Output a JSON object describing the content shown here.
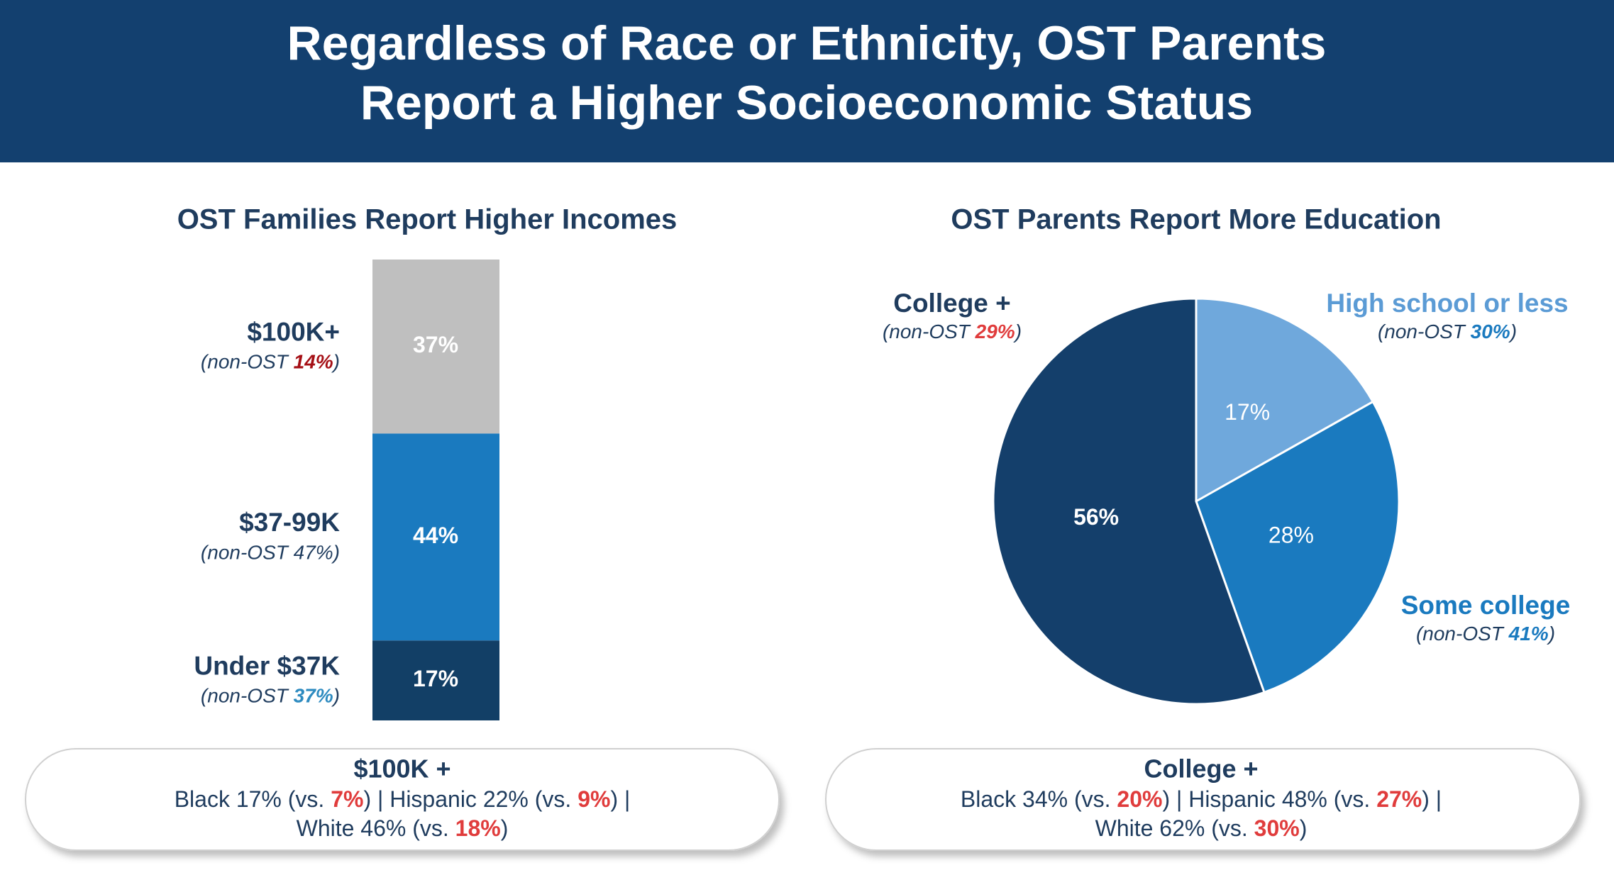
{
  "title_lines": [
    "Regardless of Race or Ethnicity, OST Parents",
    "Report a Higher Socioeconomic Status"
  ],
  "chart_data": [
    {
      "type": "stacked-bar",
      "title": "OST Families Report Higher Incomes",
      "series": [
        {
          "name": "Under $37K",
          "color": "#123f66",
          "values": [
            17
          ],
          "value_labels": [
            "17%"
          ],
          "note": [
            "(non-OST ",
            "37%",
            ")"
          ],
          "note_color": "#2e8bc0"
        },
        {
          "name": "$37-99K",
          "color": "#1a7abf",
          "values": [
            44
          ],
          "value_labels": [
            "44%"
          ],
          "note": [
            "(non-OST 47%)"
          ]
        },
        {
          "name": "$100K+",
          "color": "#bfbfbf",
          "values": [
            37
          ],
          "value_labels": [
            "37%"
          ],
          "note": [
            "(non-OST ",
            "14%",
            ")"
          ],
          "note_color": "#a50f15"
        }
      ],
      "callout": {
        "title": "$100K +",
        "highlight_color": "#e03c3c",
        "lines": [
          [
            "Black 17% (vs. ",
            "7%",
            ") | Hispanic 22% (vs. ",
            "9%",
            ") |"
          ],
          [
            "White 46% (vs. ",
            "18%",
            ")"
          ]
        ]
      }
    },
    {
      "type": "pie",
      "title": "OST Parents Report More Education",
      "categories": [
        "High school or less",
        "Some college",
        "College +"
      ],
      "values": [
        17,
        28,
        56
      ],
      "value_labels": [
        "17%",
        "28%",
        "56%"
      ],
      "colors": [
        "#6fa8dc",
        "#1a7abf",
        "#143f6b"
      ],
      "label_colors": [
        "#5b9bd5",
        "#1a7abf",
        "#1f3c5e"
      ],
      "notes": [
        [
          "(non-OST ",
          "30%",
          ")"
        ],
        [
          "(non-OST ",
          "41%",
          ")"
        ],
        [
          "(non-OST ",
          "29%",
          ")"
        ]
      ],
      "note_colors": [
        "#1a7abf",
        "#1a7abf",
        "#e03c3c"
      ],
      "callout": {
        "title": "College +",
        "highlight_color": "#e03c3c",
        "lines": [
          [
            "Black 34% (vs. ",
            "20%",
            ") | Hispanic 48% (vs. ",
            "27%",
            ") |"
          ],
          [
            "White 62% (vs. ",
            "30%",
            ")"
          ]
        ]
      }
    }
  ]
}
